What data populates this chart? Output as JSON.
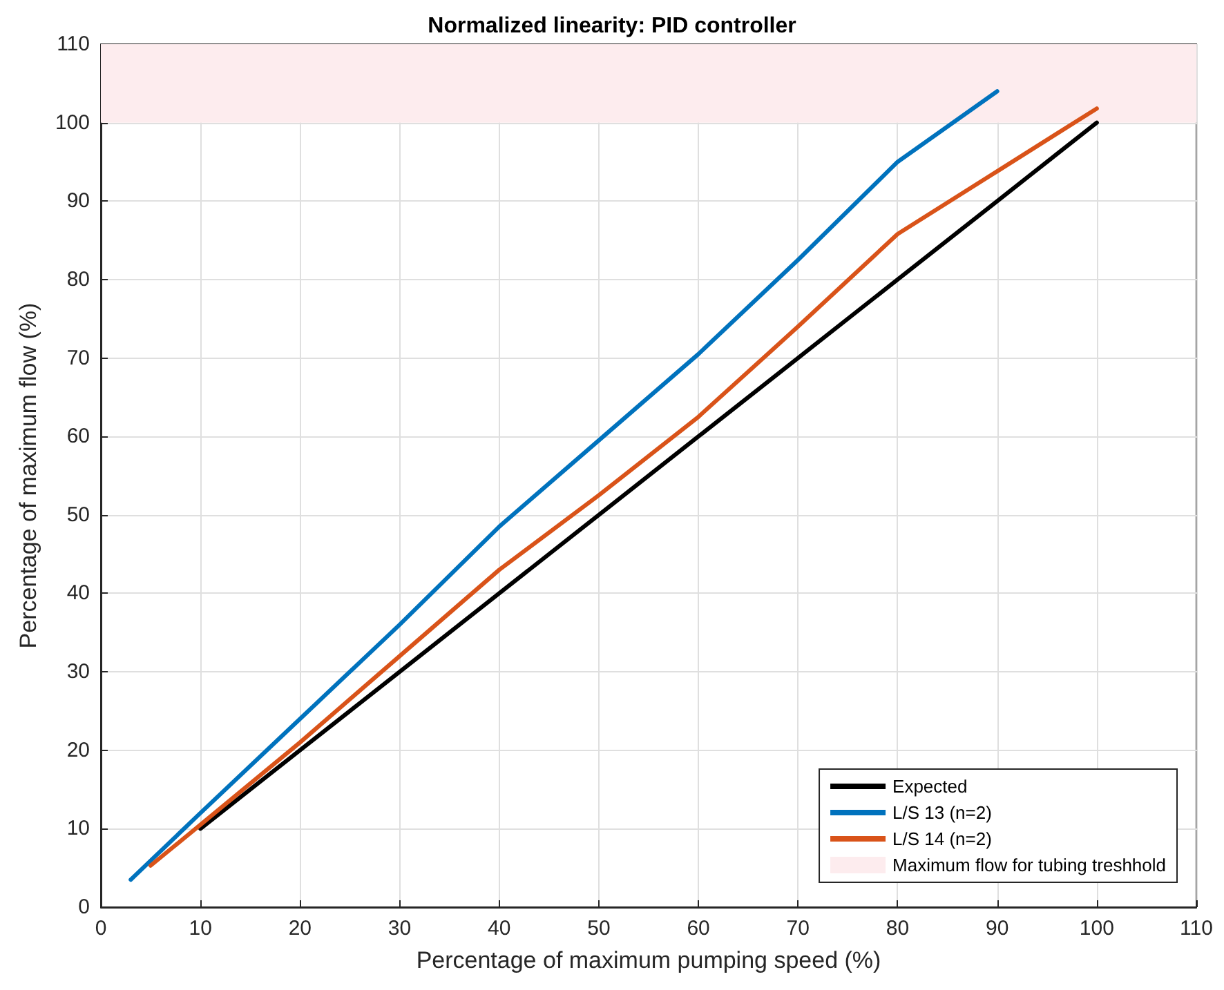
{
  "chart_data": {
    "type": "line",
    "title": "Normalized linearity: PID controller",
    "xlabel": "Percentage of maximum pumping speed (%)",
    "ylabel": "Percentage of maximum flow (%)",
    "xlim": [
      0,
      110
    ],
    "xticks": [
      0,
      10,
      20,
      30,
      40,
      50,
      60,
      70,
      80,
      90,
      100,
      110
    ],
    "ylim": [
      0,
      110
    ],
    "yticks": [
      0,
      10,
      20,
      30,
      40,
      50,
      60,
      70,
      80,
      90,
      100,
      110
    ],
    "grid": true,
    "legend": "bottom right",
    "marker": "none",
    "line_style": "solid",
    "series": [
      {
        "name": "Expected",
        "color": "#000000",
        "x": [
          10,
          20,
          30,
          40,
          50,
          60,
          70,
          80,
          90,
          100
        ],
        "values": [
          10,
          20,
          30,
          40,
          50,
          60,
          70,
          80,
          90,
          100
        ]
      },
      {
        "name": "L/S 13 (n=2)",
        "color": "#0072bd",
        "x": [
          3,
          10,
          20,
          30,
          40,
          50,
          60,
          70,
          80,
          90
        ],
        "values": [
          3.5,
          12,
          24,
          36,
          48.5,
          59.5,
          70.5,
          82.5,
          95,
          104
        ]
      },
      {
        "name": "L/S 14 (n=2)",
        "color": "#d95319",
        "x": [
          5,
          10,
          20,
          30,
          40,
          50,
          60,
          70,
          80,
          90,
          100
        ],
        "values": [
          5.3,
          10.5,
          21,
          32,
          43,
          52.5,
          62.5,
          74,
          85.8,
          93.8,
          101.8
        ]
      }
    ],
    "bands": [
      {
        "axis": "y",
        "from": 100,
        "to": 110,
        "label": "Maximum flow for tubing treshhold",
        "color": "#fdecee"
      }
    ]
  }
}
